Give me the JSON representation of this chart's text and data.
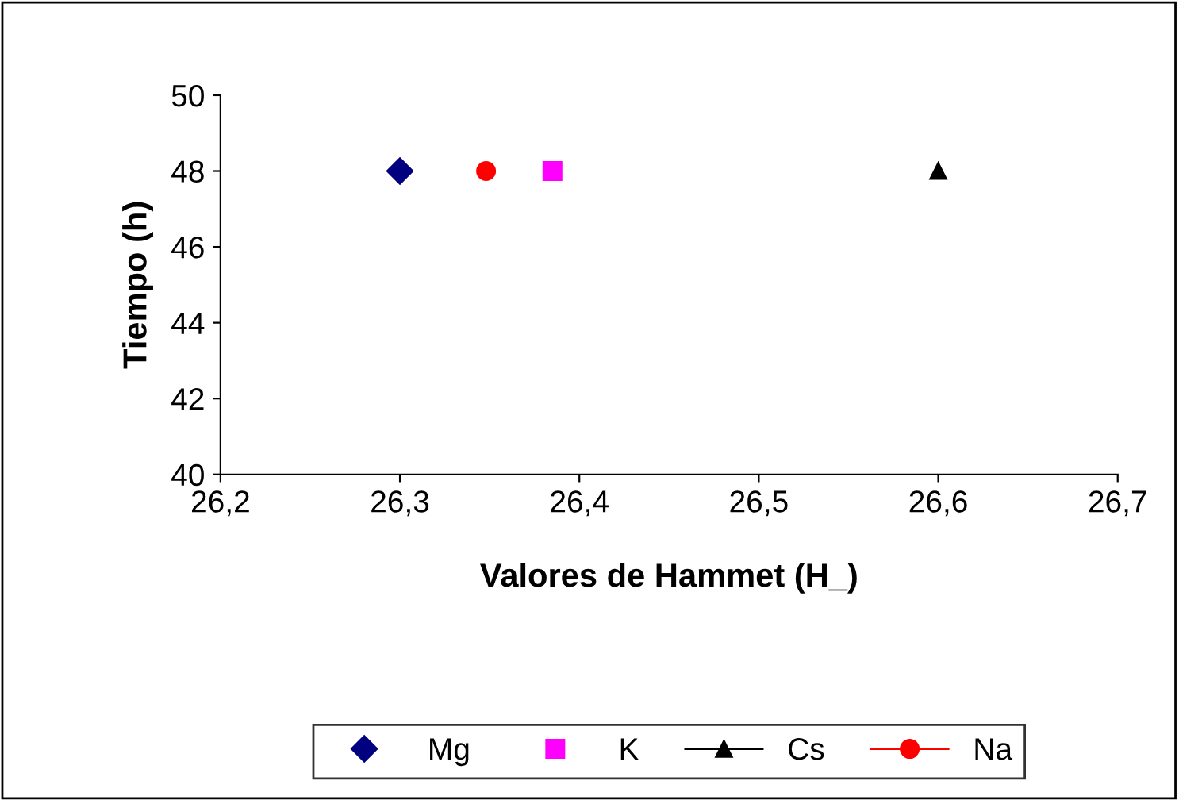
{
  "chart_data": {
    "type": "scatter",
    "xlabel": "Valores de Hammet (H_)",
    "ylabel": "Tiempo (h)",
    "xlim": [
      26.2,
      26.7
    ],
    "xticks": [
      {
        "value": 26.2,
        "label": "26,2"
      },
      {
        "value": 26.3,
        "label": "26,3"
      },
      {
        "value": 26.4,
        "label": "26,4"
      },
      {
        "value": 26.5,
        "label": "26,5"
      },
      {
        "value": 26.6,
        "label": "26,6"
      },
      {
        "value": 26.7,
        "label": "26,7"
      }
    ],
    "ylim": [
      40,
      50
    ],
    "yticks": [
      40,
      42,
      44,
      46,
      48,
      50
    ],
    "grid": false,
    "legend": "bottom",
    "series": [
      {
        "name": "Mg",
        "marker": "diamond",
        "color": "#000080",
        "x": [
          26.3
        ],
        "values": [
          48
        ]
      },
      {
        "name": "K",
        "marker": "square",
        "color": "#ff00ff",
        "x": [
          26.385
        ],
        "values": [
          48
        ]
      },
      {
        "name": "Cs",
        "type": "line",
        "marker": "triangle",
        "color": "#000000",
        "x": [
          26.6
        ],
        "values": [
          48
        ]
      },
      {
        "name": "Na",
        "type": "line",
        "marker": "circle",
        "color": "#ff0000",
        "x": [
          26.348
        ],
        "values": [
          48
        ]
      }
    ]
  }
}
